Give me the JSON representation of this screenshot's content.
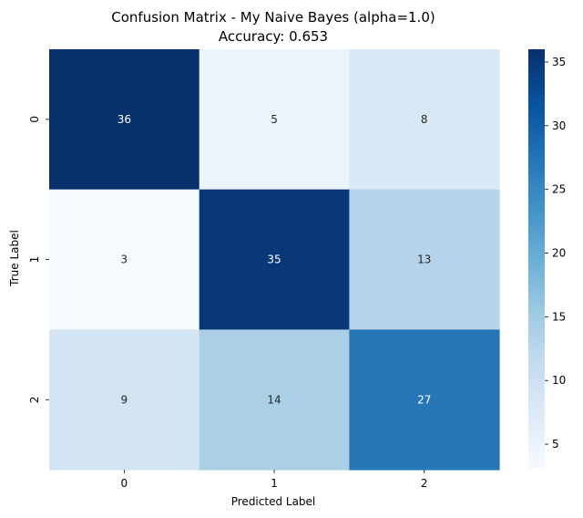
{
  "chart_data": {
    "type": "heatmap",
    "title": "Confusion Matrix - My Naive Bayes (alpha=1.0)",
    "subtitle": "Accuracy: 0.653",
    "xlabel": "Predicted Label",
    "ylabel": "True Label",
    "x_categories": [
      "0",
      "1",
      "2"
    ],
    "y_categories": [
      "0",
      "1",
      "2"
    ],
    "values": [
      [
        36,
        5,
        8
      ],
      [
        3,
        35,
        13
      ],
      [
        9,
        14,
        27
      ]
    ],
    "colormap": "Blues",
    "color_min": 3,
    "color_max": 36,
    "colorbar_ticks": [
      5,
      10,
      15,
      20,
      25,
      30,
      35
    ],
    "grid": false
  }
}
